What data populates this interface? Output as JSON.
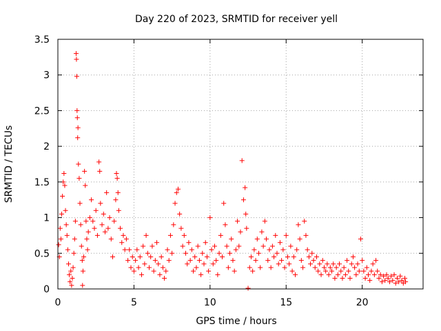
{
  "chart_data": {
    "type": "scatter",
    "title": "Day 220 of 2023, SRMTID for receiver yell",
    "xlabel": "GPS time / hours",
    "ylabel": "SRMTID / TECUs",
    "xlim": [
      0,
      24
    ],
    "ylim": [
      0,
      3.5
    ],
    "xticks": [
      0,
      5,
      10,
      15,
      20
    ],
    "xtick_labels": [
      "0",
      "5",
      "10",
      "15",
      "20"
    ],
    "yticks": [
      0,
      0.5,
      1,
      1.5,
      2,
      2.5,
      3,
      3.5
    ],
    "ytick_labels": [
      "0",
      "0.5",
      "1",
      "1.5",
      "2",
      "2.5",
      "3",
      "3.5"
    ],
    "grid": true,
    "marker": "plus",
    "color": "#ff0000",
    "series": [
      {
        "name": "SRMTID",
        "points": [
          [
            0.05,
            0.62
          ],
          [
            0.1,
            0.45
          ],
          [
            0.15,
            0.85
          ],
          [
            0.2,
            0.7
          ],
          [
            0.25,
            1.05
          ],
          [
            0.3,
            1.3
          ],
          [
            0.35,
            1.5
          ],
          [
            0.4,
            1.62
          ],
          [
            0.45,
            1.45
          ],
          [
            0.5,
            1.1
          ],
          [
            0.55,
            0.9
          ],
          [
            0.6,
            0.75
          ],
          [
            0.65,
            0.55
          ],
          [
            0.7,
            0.35
          ],
          [
            0.75,
            0.2
          ],
          [
            0.8,
            0.1
          ],
          [
            0.85,
            0.25
          ],
          [
            0.9,
            0.05
          ],
          [
            0.95,
            0.15
          ],
          [
            1.0,
            0.3
          ],
          [
            1.05,
            0.5
          ],
          [
            1.1,
            0.7
          ],
          [
            1.15,
            0.95
          ],
          [
            1.2,
            3.3
          ],
          [
            1.22,
            3.22
          ],
          [
            1.24,
            2.98
          ],
          [
            1.26,
            2.5
          ],
          [
            1.28,
            2.4
          ],
          [
            1.3,
            2.12
          ],
          [
            1.32,
            2.26
          ],
          [
            1.35,
            1.75
          ],
          [
            1.4,
            1.55
          ],
          [
            1.45,
            1.2
          ],
          [
            1.5,
            0.9
          ],
          [
            1.55,
            0.6
          ],
          [
            1.6,
            0.4
          ],
          [
            1.62,
            0.05
          ],
          [
            1.65,
            0.25
          ],
          [
            1.7,
            0.45
          ],
          [
            1.75,
            1.65
          ],
          [
            1.8,
            1.45
          ],
          [
            1.85,
            0.95
          ],
          [
            1.9,
            0.7
          ],
          [
            1.95,
            0.55
          ],
          [
            2.0,
            0.8
          ],
          [
            2.1,
            1.0
          ],
          [
            2.2,
            1.25
          ],
          [
            2.3,
            0.95
          ],
          [
            2.4,
            0.85
          ],
          [
            2.5,
            1.1
          ],
          [
            2.6,
            0.75
          ],
          [
            2.7,
            1.78
          ],
          [
            2.75,
            1.65
          ],
          [
            2.8,
            1.2
          ],
          [
            2.9,
            0.9
          ],
          [
            3.0,
            1.05
          ],
          [
            3.1,
            0.8
          ],
          [
            3.2,
            1.35
          ],
          [
            3.3,
            0.85
          ],
          [
            3.4,
            1.0
          ],
          [
            3.5,
            0.7
          ],
          [
            3.6,
            0.45
          ],
          [
            3.7,
            0.95
          ],
          [
            3.8,
            1.25
          ],
          [
            3.85,
            1.62
          ],
          [
            3.9,
            1.55
          ],
          [
            3.95,
            1.35
          ],
          [
            4.0,
            1.1
          ],
          [
            4.1,
            0.85
          ],
          [
            4.2,
            0.65
          ],
          [
            4.3,
            0.75
          ],
          [
            4.4,
            0.55
          ],
          [
            4.5,
            0.7
          ],
          [
            4.6,
            0.4
          ],
          [
            4.7,
            0.55
          ],
          [
            4.8,
            0.3
          ],
          [
            4.9,
            0.45
          ],
          [
            5.0,
            0.25
          ],
          [
            5.1,
            0.4
          ],
          [
            5.2,
            0.55
          ],
          [
            5.3,
            0.3
          ],
          [
            5.4,
            0.45
          ],
          [
            5.5,
            0.2
          ],
          [
            5.6,
            0.6
          ],
          [
            5.7,
            0.35
          ],
          [
            5.8,
            0.75
          ],
          [
            5.9,
            0.5
          ],
          [
            6.0,
            0.3
          ],
          [
            6.1,
            0.45
          ],
          [
            6.2,
            0.6
          ],
          [
            6.3,
            0.25
          ],
          [
            6.4,
            0.4
          ],
          [
            6.5,
            0.65
          ],
          [
            6.6,
            0.35
          ],
          [
            6.7,
            0.2
          ],
          [
            6.8,
            0.45
          ],
          [
            6.9,
            0.3
          ],
          [
            7.0,
            0.15
          ],
          [
            7.1,
            0.25
          ],
          [
            7.2,
            0.55
          ],
          [
            7.3,
            0.4
          ],
          [
            7.4,
            0.75
          ],
          [
            7.5,
            0.5
          ],
          [
            7.6,
            0.9
          ],
          [
            7.7,
            1.2
          ],
          [
            7.8,
            1.35
          ],
          [
            7.9,
            1.4
          ],
          [
            8.0,
            1.05
          ],
          [
            8.1,
            0.85
          ],
          [
            8.2,
            0.6
          ],
          [
            8.3,
            0.75
          ],
          [
            8.4,
            0.5
          ],
          [
            8.5,
            0.35
          ],
          [
            8.6,
            0.65
          ],
          [
            8.7,
            0.4
          ],
          [
            8.8,
            0.55
          ],
          [
            8.9,
            0.25
          ],
          [
            9.0,
            0.45
          ],
          [
            9.1,
            0.3
          ],
          [
            9.2,
            0.6
          ],
          [
            9.3,
            0.4
          ],
          [
            9.4,
            0.2
          ],
          [
            9.5,
            0.5
          ],
          [
            9.6,
            0.35
          ],
          [
            9.7,
            0.65
          ],
          [
            9.8,
            0.45
          ],
          [
            9.9,
            0.25
          ],
          [
            10.0,
            1.0
          ],
          [
            10.1,
            0.55
          ],
          [
            10.2,
            0.35
          ],
          [
            10.3,
            0.6
          ],
          [
            10.4,
            0.4
          ],
          [
            10.5,
            0.2
          ],
          [
            10.6,
            0.5
          ],
          [
            10.7,
            0.75
          ],
          [
            10.8,
            0.45
          ],
          [
            10.9,
            1.2
          ],
          [
            11.0,
            0.9
          ],
          [
            11.1,
            0.6
          ],
          [
            11.2,
            0.3
          ],
          [
            11.3,
            0.5
          ],
          [
            11.4,
            0.7
          ],
          [
            11.5,
            0.4
          ],
          [
            11.6,
            0.25
          ],
          [
            11.7,
            0.55
          ],
          [
            11.8,
            0.95
          ],
          [
            11.9,
            0.6
          ],
          [
            12.0,
            0.8
          ],
          [
            12.1,
            1.8
          ],
          [
            12.2,
            1.25
          ],
          [
            12.3,
            1.42
          ],
          [
            12.35,
            1.05
          ],
          [
            12.4,
            0.85
          ],
          [
            12.5,
            0.01
          ],
          [
            12.6,
            0.3
          ],
          [
            12.7,
            0.45
          ],
          [
            12.8,
            0.25
          ],
          [
            12.9,
            0.55
          ],
          [
            13.0,
            0.4
          ],
          [
            13.1,
            0.7
          ],
          [
            13.2,
            0.5
          ],
          [
            13.3,
            0.3
          ],
          [
            13.4,
            0.8
          ],
          [
            13.5,
            0.6
          ],
          [
            13.6,
            0.95
          ],
          [
            13.7,
            0.7
          ],
          [
            13.8,
            0.4
          ],
          [
            13.9,
            0.55
          ],
          [
            14.0,
            0.3
          ],
          [
            14.1,
            0.6
          ],
          [
            14.2,
            0.45
          ],
          [
            14.3,
            0.75
          ],
          [
            14.4,
            0.5
          ],
          [
            14.5,
            0.35
          ],
          [
            14.6,
            0.65
          ],
          [
            14.7,
            0.4
          ],
          [
            14.8,
            0.55
          ],
          [
            14.9,
            0.3
          ],
          [
            15.0,
            0.75
          ],
          [
            15.1,
            0.45
          ],
          [
            15.2,
            0.35
          ],
          [
            15.3,
            0.6
          ],
          [
            15.4,
            0.25
          ],
          [
            15.5,
            0.45
          ],
          [
            15.6,
            0.2
          ],
          [
            15.7,
            0.55
          ],
          [
            15.8,
            0.9
          ],
          [
            15.9,
            0.7
          ],
          [
            16.0,
            0.4
          ],
          [
            16.1,
            0.3
          ],
          [
            16.2,
            0.95
          ],
          [
            16.3,
            0.75
          ],
          [
            16.4,
            0.55
          ],
          [
            16.5,
            0.45
          ],
          [
            16.6,
            0.35
          ],
          [
            16.7,
            0.5
          ],
          [
            16.8,
            0.4
          ],
          [
            16.9,
            0.3
          ],
          [
            17.0,
            0.45
          ],
          [
            17.1,
            0.25
          ],
          [
            17.2,
            0.35
          ],
          [
            17.3,
            0.2
          ],
          [
            17.4,
            0.4
          ],
          [
            17.5,
            0.3
          ],
          [
            17.6,
            0.25
          ],
          [
            17.7,
            0.35
          ],
          [
            17.8,
            0.2
          ],
          [
            17.9,
            0.3
          ],
          [
            18.0,
            0.25
          ],
          [
            18.1,
            0.35
          ],
          [
            18.2,
            0.15
          ],
          [
            18.3,
            0.3
          ],
          [
            18.4,
            0.2
          ],
          [
            18.5,
            0.35
          ],
          [
            18.6,
            0.25
          ],
          [
            18.7,
            0.15
          ],
          [
            18.8,
            0.3
          ],
          [
            18.9,
            0.2
          ],
          [
            19.0,
            0.4
          ],
          [
            19.1,
            0.25
          ],
          [
            19.2,
            0.15
          ],
          [
            19.3,
            0.35
          ],
          [
            19.4,
            0.45
          ],
          [
            19.5,
            0.3
          ],
          [
            19.6,
            0.2
          ],
          [
            19.7,
            0.35
          ],
          [
            19.8,
            0.25
          ],
          [
            19.9,
            0.7
          ],
          [
            20.0,
            0.4
          ],
          [
            20.1,
            0.25
          ],
          [
            20.2,
            0.15
          ],
          [
            20.3,
            0.3
          ],
          [
            20.4,
            0.2
          ],
          [
            20.5,
            0.12
          ],
          [
            20.6,
            0.25
          ],
          [
            20.7,
            0.35
          ],
          [
            20.8,
            0.2
          ],
          [
            20.9,
            0.4
          ],
          [
            21.0,
            0.25
          ],
          [
            21.1,
            0.15
          ],
          [
            21.2,
            0.2
          ],
          [
            21.3,
            0.1
          ],
          [
            21.4,
            0.18
          ],
          [
            21.5,
            0.12
          ],
          [
            21.6,
            0.2
          ],
          [
            21.7,
            0.15
          ],
          [
            21.8,
            0.1
          ],
          [
            21.9,
            0.18
          ],
          [
            22.0,
            0.12
          ],
          [
            22.1,
            0.2
          ],
          [
            22.2,
            0.08
          ],
          [
            22.3,
            0.15
          ],
          [
            22.4,
            0.1
          ],
          [
            22.5,
            0.18
          ],
          [
            22.6,
            0.12
          ],
          [
            22.7,
            0.08
          ],
          [
            22.8,
            0.15
          ],
          [
            22.85,
            0.1
          ]
        ]
      }
    ]
  }
}
